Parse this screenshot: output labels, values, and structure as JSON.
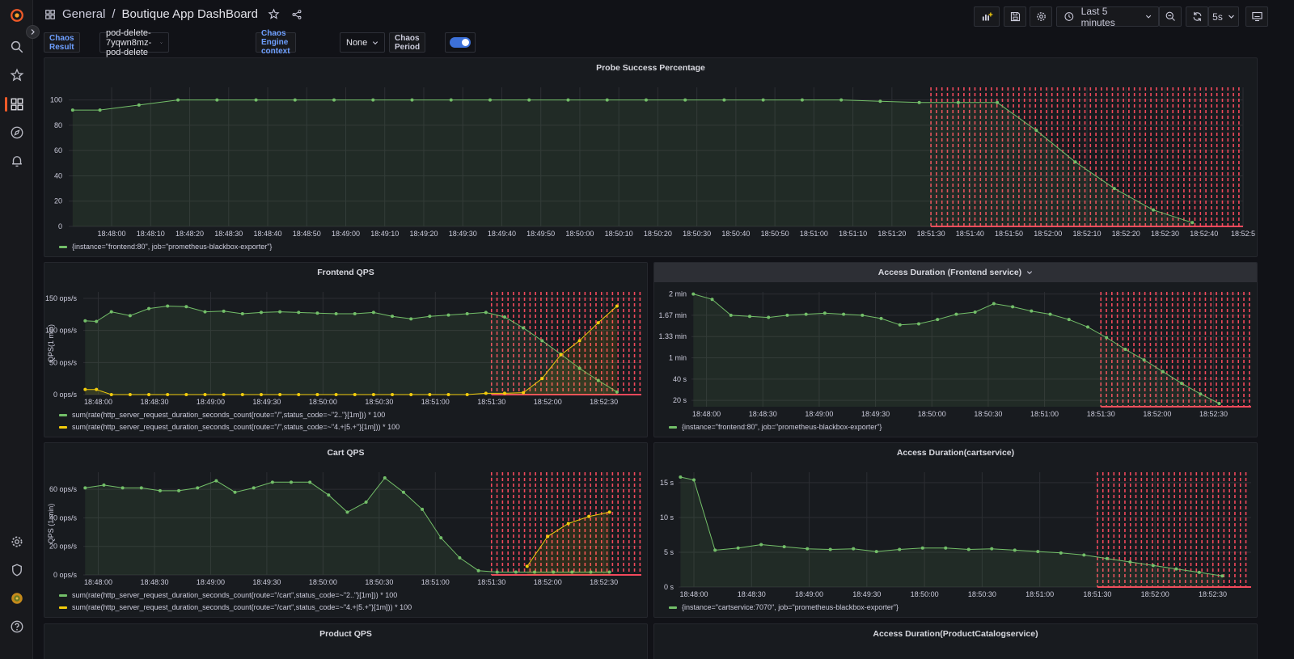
{
  "breadcrumb": {
    "folder": "General",
    "separator": "/",
    "title": "Boutique App DashBoard"
  },
  "toolbar": {
    "time_range": "Last 5 minutes",
    "refresh_interval": "5s"
  },
  "variables": {
    "chaos_result_label": "Chaos Result",
    "chaos_result_value": "pod-delete-7yqwn8mz-pod-delete",
    "chaos_engine_label": "Chaos Engine context",
    "chaos_engine_value": "None",
    "chaos_period_label": "Chaos Period",
    "chaos_period_on": true
  },
  "colors": {
    "green": "#73bf69",
    "yellow": "#f2cc0c",
    "red": "#f2495c",
    "accent": "#3d71d9",
    "brand": "#f05a28"
  },
  "panels": {
    "probe": {
      "title": "Probe Success Percentage",
      "legend": [
        "{instance=\"frontend:80\", job=\"prometheus-blackbox-exporter\"}"
      ]
    },
    "frontend_qps": {
      "title": "Frontend QPS",
      "ylabel": "QPS(1 min)",
      "legend": [
        "sum(rate(http_server_request_duration_seconds_count{route=\"/\",status_code=~\"2..\"}[1m])) * 100",
        "sum(rate(http_server_request_duration_seconds_count{route=\"/\",status_code=~\"4.+|5.+\"}[1m])) * 100"
      ]
    },
    "access_frontend": {
      "title": "Access Duration (Frontend service)",
      "legend": [
        "{instance=\"frontend:80\", job=\"prometheus-blackbox-exporter\"}"
      ]
    },
    "cart_qps": {
      "title": "Cart QPS",
      "ylabel": "QPS (1 min)",
      "legend": [
        "sum(rate(http_server_request_duration_seconds_count{route=\"/cart\",status_code=~\"2..\"}[1m])) * 100",
        "sum(rate(http_server_request_duration_seconds_count{route=\"/cart\",status_code=~\"4.+|5.+\"}[1m])) * 100"
      ]
    },
    "access_cart": {
      "title": "Access Duration(cartservice)",
      "legend": [
        "{instance=\"cartservice:7070\", job=\"prometheus-blackbox-exporter\"}"
      ]
    },
    "product_qps": {
      "title": "Product QPS"
    },
    "access_catalog": {
      "title": "Access Duration(ProductCatalogservice)"
    }
  },
  "chart_data": [
    {
      "id": "probe",
      "type": "line",
      "title": "Probe Success Percentage",
      "x_ticks": [
        "18:48:00",
        "18:48:10",
        "18:48:20",
        "18:48:30",
        "18:48:40",
        "18:48:50",
        "18:49:00",
        "18:49:10",
        "18:49:20",
        "18:49:30",
        "18:49:40",
        "18:49:50",
        "18:50:00",
        "18:50:10",
        "18:50:20",
        "18:50:30",
        "18:50:40",
        "18:50:50",
        "18:51:00",
        "18:51:10",
        "18:51:20",
        "18:51:30",
        "18:51:40",
        "18:51:50",
        "18:52:00",
        "18:52:10",
        "18:52:20",
        "18:52:30",
        "18:52:40",
        "18:52:5"
      ],
      "x_ticks_sec": [
        0,
        10,
        20,
        30,
        40,
        50,
        60,
        70,
        80,
        90,
        100,
        110,
        120,
        130,
        140,
        150,
        160,
        170,
        180,
        190,
        200,
        210,
        220,
        230,
        240,
        250,
        260,
        270,
        280,
        290
      ],
      "xlim_sec": [
        -11,
        290
      ],
      "y_ticks": [
        0,
        20,
        40,
        60,
        80,
        100
      ],
      "y_tick_labels": [
        "0",
        "20",
        "40",
        "60",
        "80",
        "100"
      ],
      "ylim": [
        0,
        110
      ],
      "chaos_period_sec": [
        210,
        290
      ],
      "series": [
        {
          "color": "green",
          "x_sec": [
            -10,
            -3,
            7,
            17,
            27,
            37,
            47,
            57,
            67,
            77,
            87,
            97,
            107,
            117,
            127,
            137,
            147,
            157,
            167,
            177,
            187,
            197,
            207,
            217,
            227,
            237,
            247,
            257,
            267,
            277
          ],
          "y": [
            92,
            92,
            96,
            100,
            100,
            100,
            100,
            100,
            100,
            100,
            100,
            100,
            100,
            100,
            100,
            100,
            100,
            100,
            100,
            100,
            100,
            99,
            98,
            98,
            98,
            76,
            51,
            30,
            13,
            3
          ],
          "markers_idx": [
            1,
            3,
            8,
            13,
            18,
            23,
            28,
            33,
            38,
            43,
            48,
            53,
            58,
            63,
            68,
            73,
            78,
            83,
            88,
            93,
            98,
            103,
            108,
            113,
            118,
            123,
            128,
            133,
            138,
            143
          ]
        }
      ]
    },
    {
      "id": "frontend_qps",
      "type": "line",
      "title": "Frontend QPS",
      "ylabel": "QPS(1 min)",
      "x_ticks": [
        "18:48:00",
        "18:48:30",
        "18:49:00",
        "18:49:30",
        "18:50:00",
        "18:50:30",
        "18:51:00",
        "18:51:30",
        "18:52:00",
        "18:52:30"
      ],
      "x_ticks_sec": [
        0,
        30,
        60,
        90,
        120,
        150,
        180,
        210,
        240,
        270
      ],
      "xlim_sec": [
        -8,
        290
      ],
      "y_ticks": [
        0,
        50,
        100,
        150
      ],
      "y_tick_labels": [
        "0 ops/s",
        "50 ops/s",
        "100 ops/s",
        "150 ops/s"
      ],
      "ylim": [
        0,
        160
      ],
      "chaos_period_sec": [
        210,
        290
      ],
      "series": [
        {
          "color": "green",
          "x_sec": [
            -7,
            -1,
            7,
            17,
            27,
            37,
            47,
            57,
            67,
            77,
            87,
            97,
            107,
            117,
            127,
            137,
            147,
            157,
            167,
            177,
            187,
            197,
            207,
            217,
            227,
            237,
            247,
            257,
            267,
            277
          ],
          "y": [
            115,
            114,
            129,
            123,
            134,
            138,
            137,
            129,
            130,
            126,
            128,
            129,
            128,
            127,
            126,
            126,
            128,
            122,
            118,
            122,
            124,
            126,
            128,
            121,
            104,
            84,
            63,
            41,
            22,
            4
          ]
        },
        {
          "color": "yellow",
          "x_sec": [
            -7,
            -1,
            7,
            17,
            27,
            37,
            47,
            57,
            67,
            77,
            87,
            97,
            107,
            117,
            127,
            137,
            147,
            157,
            167,
            177,
            187,
            197,
            207,
            217,
            227,
            237,
            247,
            257,
            267,
            277
          ],
          "y": [
            8,
            8,
            0,
            0,
            0,
            0,
            0,
            0,
            0,
            0,
            0,
            0,
            0,
            0,
            0,
            0,
            0,
            0,
            0,
            0,
            0,
            0,
            2,
            2,
            3,
            25,
            62,
            84,
            112,
            138
          ]
        }
      ]
    },
    {
      "id": "access_frontend",
      "type": "line",
      "title": "Access Duration (Frontend service)",
      "x_ticks": [
        "18:48:00",
        "18:48:30",
        "18:49:00",
        "18:49:30",
        "18:50:00",
        "18:50:30",
        "18:51:00",
        "18:51:30",
        "18:52:00",
        "18:52:30"
      ],
      "x_ticks_sec": [
        0,
        30,
        60,
        90,
        120,
        150,
        180,
        210,
        240,
        270
      ],
      "xlim_sec": [
        -8,
        290
      ],
      "y_ticks": [
        20,
        40,
        60,
        80,
        100,
        120
      ],
      "y_tick_labels": [
        "20 s",
        "40 s",
        "1 min",
        "1.33 min",
        "1.67 min",
        "2 min"
      ],
      "ylim": [
        14,
        122
      ],
      "chaos_period_sec": [
        210,
        290
      ],
      "series": [
        {
          "color": "green",
          "x_sec": [
            -7,
            3,
            13,
            23,
            33,
            43,
            53,
            63,
            73,
            83,
            93,
            103,
            113,
            123,
            133,
            143,
            153,
            163,
            173,
            183,
            193,
            203,
            213,
            223,
            233,
            243,
            253,
            263,
            273
          ],
          "y": [
            120,
            115,
            100,
            99,
            98,
            100,
            101,
            102,
            101,
            100,
            97,
            91,
            92,
            96,
            101,
            103,
            111,
            108,
            104,
            101,
            96,
            89,
            79,
            68,
            58,
            47,
            36,
            26,
            17
          ]
        }
      ]
    },
    {
      "id": "cart_qps",
      "type": "line",
      "title": "Cart QPS",
      "ylabel": "QPS (1 min)",
      "x_ticks": [
        "18:48:00",
        "18:48:30",
        "18:49:00",
        "18:49:30",
        "18:50:00",
        "18:50:30",
        "18:51:00",
        "18:51:30",
        "18:52:00",
        "18:52:30"
      ],
      "x_ticks_sec": [
        0,
        30,
        60,
        90,
        120,
        150,
        180,
        210,
        240,
        270
      ],
      "xlim_sec": [
        -8,
        290
      ],
      "y_ticks": [
        0,
        20,
        40,
        60
      ],
      "y_tick_labels": [
        "0 ops/s",
        "20 ops/s",
        "40 ops/s",
        "60 ops/s"
      ],
      "ylim": [
        0,
        72
      ],
      "chaos_period_sec": [
        210,
        290
      ],
      "series": [
        {
          "color": "green",
          "x_sec": [
            -7,
            3,
            13,
            23,
            33,
            43,
            53,
            63,
            73,
            83,
            93,
            103,
            113,
            123,
            133,
            143,
            153,
            163,
            173,
            183,
            193,
            203,
            213,
            223,
            233,
            243,
            253,
            263,
            273
          ],
          "y": [
            61,
            63,
            61,
            61,
            59,
            59,
            61,
            66,
            58,
            61,
            65,
            65,
            65,
            56,
            44,
            51,
            68,
            58,
            46,
            26,
            12,
            3,
            2,
            2,
            2,
            2,
            2,
            2,
            2
          ]
        },
        {
          "color": "yellow",
          "x_sec": [
            229,
            240,
            251,
            262,
            273
          ],
          "y": [
            6,
            27,
            36,
            41,
            44
          ]
        }
      ]
    },
    {
      "id": "access_cart",
      "type": "line",
      "title": "Access Duration(cartservice)",
      "x_ticks": [
        "18:48:00",
        "18:48:30",
        "18:49:00",
        "18:49:30",
        "18:50:00",
        "18:50:30",
        "18:51:00",
        "18:51:30",
        "18:52:00",
        "18:52:30"
      ],
      "x_ticks_sec": [
        0,
        30,
        60,
        90,
        120,
        150,
        180,
        210,
        240,
        270
      ],
      "xlim_sec": [
        -8,
        290
      ],
      "y_ticks": [
        0,
        5,
        10,
        15
      ],
      "y_tick_labels": [
        "0 s",
        "5 s",
        "10 s",
        "15 s"
      ],
      "ylim": [
        0,
        16.5
      ],
      "chaos_period_sec": [
        210,
        290
      ],
      "series": [
        {
          "color": "green",
          "x_sec": [
            -7,
            0,
            11,
            23,
            35,
            47,
            59,
            71,
            83,
            95,
            107,
            119,
            131,
            143,
            155,
            167,
            179,
            191,
            203,
            215,
            227,
            239,
            251,
            263,
            275
          ],
          "y": [
            15.8,
            15.4,
            5.3,
            5.6,
            6.1,
            5.8,
            5.5,
            5.4,
            5.5,
            5.1,
            5.4,
            5.6,
            5.6,
            5.4,
            5.5,
            5.3,
            5.1,
            4.9,
            4.6,
            4.1,
            3.6,
            3.1,
            2.6,
            2.1,
            1.6
          ]
        }
      ]
    }
  ]
}
